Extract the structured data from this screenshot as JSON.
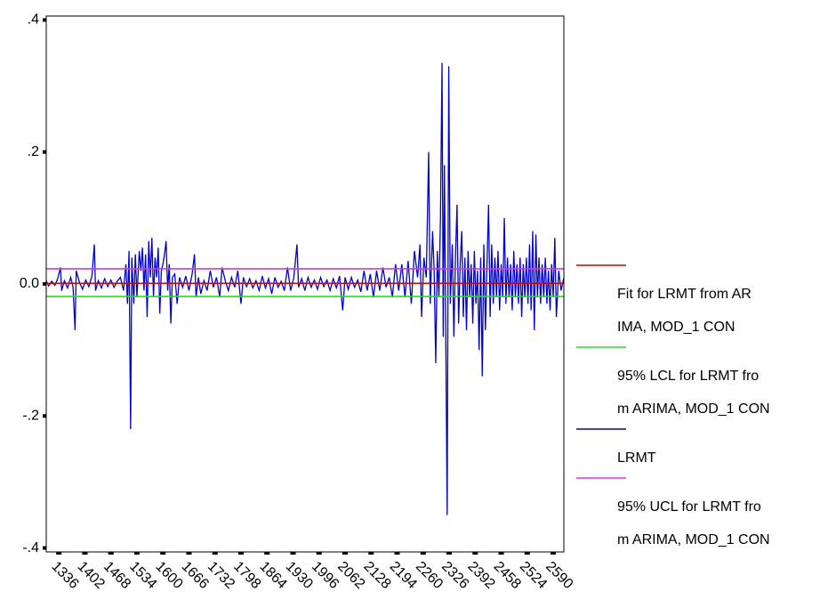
{
  "chart_data": {
    "type": "line",
    "xlim": [
      1304,
      2617
    ],
    "ylim": [
      -0.406,
      0.406
    ],
    "xticks": [
      1336,
      1402,
      1468,
      1534,
      1600,
      1666,
      1732,
      1798,
      1864,
      1930,
      1996,
      2062,
      2128,
      2194,
      2260,
      2326,
      2392,
      2458,
      2524,
      2590
    ],
    "yticks": [
      {
        "value": 0.4,
        "label": ".4"
      },
      {
        "value": 0.2,
        "label": ".2"
      },
      {
        "value": 0,
        "label": "0.0"
      },
      {
        "value": -0.2,
        "label": "-.2"
      },
      {
        "value": -0.4,
        "label": "-.4"
      }
    ],
    "series": [
      {
        "name": "Fit for LRMT from ARIMA, MOD_1 CON",
        "color": "#d40000",
        "x": [
          1304,
          2617
        ],
        "values": [
          0.001,
          0.001
        ]
      },
      {
        "name": "95% LCL for LRMT from ARIMA, MOD_1 CON",
        "color": "#22dd22",
        "x": [
          1304,
          2617
        ],
        "values": [
          -0.019,
          -0.019
        ]
      },
      {
        "name": "LRMT",
        "color": "#0000d0",
        "x": [
          1304,
          1310,
          1318,
          1326,
          1333,
          1340,
          1343,
          1350,
          1358,
          1366,
          1372,
          1377,
          1380,
          1388,
          1396,
          1404,
          1412,
          1420,
          1426,
          1429,
          1436,
          1444,
          1452,
          1460,
          1468,
          1476,
          1484,
          1492,
          1500,
          1506,
          1510,
          1514,
          1518,
          1521,
          1526,
          1530,
          1534,
          1540,
          1544,
          1548,
          1552,
          1556,
          1560,
          1564,
          1568,
          1572,
          1576,
          1580,
          1584,
          1588,
          1592,
          1596,
          1600,
          1604,
          1608,
          1612,
          1616,
          1620,
          1624,
          1630,
          1636,
          1642,
          1650,
          1658,
          1666,
          1674,
          1680,
          1684,
          1690,
          1696,
          1704,
          1712,
          1720,
          1728,
          1736,
          1744,
          1750,
          1758,
          1766,
          1774,
          1782,
          1790,
          1798,
          1804,
          1812,
          1820,
          1828,
          1836,
          1844,
          1852,
          1860,
          1868,
          1876,
          1884,
          1892,
          1900,
          1908,
          1916,
          1924,
          1932,
          1940,
          1944,
          1952,
          1960,
          1968,
          1976,
          1984,
          1992,
          2000,
          2008,
          2016,
          2024,
          2032,
          2040,
          2048,
          2056,
          2062,
          2070,
          2078,
          2086,
          2094,
          2102,
          2110,
          2118,
          2126,
          2134,
          2142,
          2150,
          2158,
          2166,
          2174,
          2182,
          2190,
          2198,
          2206,
          2214,
          2222,
          2230,
          2238,
          2246,
          2252,
          2256,
          2262,
          2268,
          2274,
          2278,
          2284,
          2288,
          2292,
          2296,
          2300,
          2304,
          2308,
          2311,
          2314,
          2317,
          2321,
          2325,
          2329,
          2334,
          2338,
          2342,
          2346,
          2350,
          2354,
          2358,
          2362,
          2366,
          2370,
          2374,
          2378,
          2382,
          2386,
          2390,
          2394,
          2398,
          2402,
          2406,
          2410,
          2414,
          2418,
          2422,
          2426,
          2430,
          2434,
          2438,
          2442,
          2446,
          2450,
          2454,
          2458,
          2462,
          2466,
          2470,
          2474,
          2478,
          2482,
          2486,
          2490,
          2494,
          2498,
          2502,
          2506,
          2510,
          2514,
          2518,
          2522,
          2526,
          2530,
          2534,
          2538,
          2542,
          2546,
          2550,
          2554,
          2558,
          2562,
          2566,
          2570,
          2574,
          2578,
          2582,
          2586,
          2590,
          2594,
          2598,
          2604,
          2610,
          2617
        ],
        "values": [
          0.005,
          -0.003,
          0.004,
          -0.002,
          0.008,
          0.025,
          -0.01,
          0.005,
          -0.006,
          0.01,
          -0.005,
          -0.07,
          0.02,
          0.003,
          -0.008,
          0.006,
          -0.004,
          0.012,
          0.06,
          -0.01,
          0.005,
          -0.006,
          0.008,
          -0.004,
          0.006,
          -0.005,
          0.004,
          0.01,
          -0.01,
          0.03,
          -0.03,
          0.05,
          -0.22,
          0.04,
          -0.03,
          0.045,
          -0.02,
          0.05,
          0.02,
          0.055,
          -0.01,
          0.045,
          -0.05,
          0.065,
          0.01,
          0.07,
          -0.02,
          0.04,
          0.01,
          0.055,
          -0.045,
          0.02,
          0.03,
          0.045,
          0.065,
          -0.01,
          0.03,
          -0.06,
          0.01,
          0.015,
          -0.03,
          0.01,
          -0.005,
          0.012,
          -0.01,
          0.015,
          0.045,
          -0.02,
          0.01,
          -0.015,
          0.005,
          -0.01,
          0.02,
          -0.005,
          0.01,
          -0.02,
          0.025,
          0.005,
          -0.01,
          0.01,
          -0.005,
          0.02,
          -0.03,
          0.01,
          -0.004,
          0.008,
          -0.006,
          0.005,
          -0.01,
          0.012,
          -0.006,
          0.008,
          -0.015,
          0.01,
          -0.005,
          0.004,
          -0.01,
          0.025,
          -0.01,
          0.01,
          0.06,
          -0.005,
          0.008,
          -0.01,
          0.01,
          -0.005,
          0.006,
          -0.008,
          0.01,
          -0.004,
          0.006,
          -0.01,
          0.008,
          -0.006,
          0.012,
          -0.04,
          0.01,
          -0.008,
          0.01,
          -0.005,
          0.006,
          -0.012,
          0.02,
          -0.01,
          0.015,
          -0.02,
          0.02,
          -0.01,
          0.025,
          -0.005,
          0.01,
          -0.02,
          0.03,
          -0.01,
          0.03,
          -0.02,
          0.035,
          -0.03,
          0.05,
          0.01,
          0.06,
          -0.05,
          0.04,
          0.01,
          0.2,
          -0.03,
          0.08,
          0.02,
          -0.12,
          0.05,
          -0.02,
          0.1,
          0.335,
          -0.08,
          0.18,
          -0.04,
          -0.35,
          0.33,
          -0.03,
          0.06,
          -0.08,
          0.04,
          0.12,
          -0.06,
          0.03,
          0.08,
          -0.05,
          0.04,
          -0.07,
          0.05,
          -0.02,
          0.03,
          -0.06,
          0.05,
          -0.03,
          0.02,
          -0.1,
          0.04,
          -0.14,
          0.06,
          -0.07,
          0.03,
          0.12,
          -0.05,
          0.06,
          -0.03,
          0.04,
          -0.02,
          0.05,
          -0.04,
          0.03,
          -0.02,
          0.1,
          -0.03,
          0.04,
          -0.02,
          0.03,
          -0.04,
          0.05,
          -0.02,
          0.03,
          -0.03,
          0.04,
          -0.05,
          0.03,
          -0.02,
          0.04,
          -0.03,
          0.06,
          -0.04,
          0.08,
          -0.07,
          0.075,
          -0.02,
          0.04,
          -0.03,
          0.03,
          -0.02,
          0.04,
          -0.03,
          0.02,
          -0.04,
          0.03,
          -0.02,
          0.07,
          -0.05,
          0.02,
          -0.01,
          0.01
        ]
      },
      {
        "name": "95% UCL for LRMT from ARIMA, MOD_1 CON",
        "color": "#dd33dd",
        "x": [
          1304,
          2617
        ],
        "values": [
          0.023,
          0.023
        ]
      }
    ]
  }
}
